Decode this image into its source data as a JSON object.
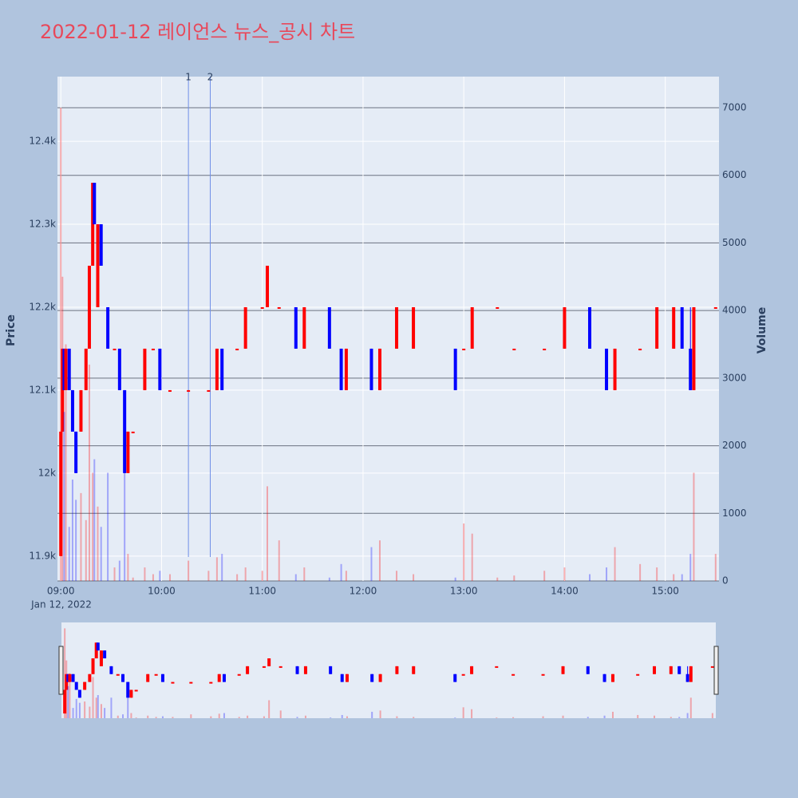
{
  "chart_data": {
    "type": "candlestick",
    "title": "2022-01-12 레이언스 뉴스_공시 차트",
    "y_label": "Price",
    "y2_label": "Volume",
    "x_date_label": "Jan 12, 2022",
    "up_color": "#ff0000",
    "down_color": "#0000ff",
    "xlim": [
      "08:58",
      "15:32"
    ],
    "xticks": [
      "09:00",
      "10:00",
      "11:00",
      "12:00",
      "13:00",
      "14:00",
      "15:00"
    ],
    "ylim": [
      11870,
      12478
    ],
    "yticks": [
      {
        "value": 11900,
        "label": "11.9k"
      },
      {
        "value": 12000,
        "label": "12k"
      },
      {
        "value": 12100,
        "label": "12.1k"
      },
      {
        "value": 12200,
        "label": "12.2k"
      },
      {
        "value": 12300,
        "label": "12.3k"
      },
      {
        "value": 12400,
        "label": "12.4k"
      }
    ],
    "y2lim": [
      0,
      7460
    ],
    "y2ticks": [
      0,
      1000,
      2000,
      3000,
      4000,
      5000,
      6000,
      7000
    ],
    "annotations": [
      {
        "label": "1",
        "x": "10:16"
      },
      {
        "label": "2",
        "x": "10:29"
      }
    ],
    "x": [
      "09:00",
      "09:01",
      "09:02",
      "09:03",
      "09:05",
      "09:07",
      "09:09",
      "09:12",
      "09:15",
      "09:17",
      "09:19",
      "09:20",
      "09:22",
      "09:24",
      "09:28",
      "09:32",
      "09:35",
      "09:38",
      "09:40",
      "09:43",
      "09:50",
      "09:55",
      "09:59",
      "10:05",
      "10:16",
      "10:28",
      "10:33",
      "10:36",
      "10:45",
      "10:50",
      "11:00",
      "11:03",
      "11:10",
      "11:20",
      "11:25",
      "11:40",
      "11:47",
      "11:50",
      "12:05",
      "12:10",
      "12:20",
      "12:30",
      "12:55",
      "13:00",
      "13:05",
      "13:20",
      "13:30",
      "13:48",
      "14:00",
      "14:15",
      "14:25",
      "14:30",
      "14:45",
      "14:55",
      "15:05",
      "15:10",
      "15:15",
      "15:17",
      "15:30"
    ],
    "open": [
      11900,
      12050,
      12150,
      12100,
      12150,
      12100,
      12050,
      12050,
      12100,
      12150,
      12250,
      12350,
      12200,
      12300,
      12200,
      12150,
      12150,
      12100,
      12000,
      12050,
      12100,
      12150,
      12150,
      12100,
      12100,
      12100,
      12100,
      12150,
      12150,
      12150,
      12200,
      12200,
      12200,
      12200,
      12150,
      12200,
      12150,
      12100,
      12150,
      12100,
      12150,
      12150,
      12150,
      12150,
      12150,
      12200,
      12150,
      12150,
      12150,
      12200,
      12150,
      12100,
      12150,
      12150,
      12150,
      12200,
      12150,
      12100,
      12200
    ],
    "high": [
      12050,
      12150,
      12150,
      12150,
      12150,
      12100,
      12050,
      12100,
      12150,
      12250,
      12350,
      12350,
      12300,
      12300,
      12200,
      12150,
      12150,
      12100,
      12050,
      12050,
      12150,
      12150,
      12150,
      12100,
      12100,
      12100,
      12150,
      12150,
      12150,
      12200,
      12200,
      12250,
      12200,
      12200,
      12200,
      12200,
      12150,
      12150,
      12150,
      12150,
      12200,
      12200,
      12150,
      12150,
      12200,
      12200,
      12150,
      12150,
      12200,
      12200,
      12150,
      12150,
      12150,
      12200,
      12200,
      12200,
      12200,
      12200,
      12200
    ],
    "low": [
      11900,
      12050,
      12100,
      12100,
      12100,
      12050,
      12000,
      12050,
      12100,
      12150,
      12250,
      12300,
      12200,
      12250,
      12150,
      12150,
      12100,
      12000,
      12000,
      12050,
      12100,
      12150,
      12100,
      12100,
      12100,
      12100,
      12100,
      12100,
      12150,
      12150,
      12200,
      12200,
      12200,
      12150,
      12150,
      12150,
      12100,
      12100,
      12100,
      12100,
      12150,
      12150,
      12100,
      12150,
      12150,
      12200,
      12150,
      12150,
      12150,
      12150,
      12100,
      12100,
      12150,
      12150,
      12150,
      12150,
      12100,
      12100,
      12200
    ],
    "close": [
      12050,
      12150,
      12100,
      12150,
      12100,
      12050,
      12000,
      12100,
      12150,
      12250,
      12350,
      12300,
      12300,
      12250,
      12150,
      12150,
      12100,
      12000,
      12050,
      12050,
      12150,
      12150,
      12100,
      12100,
      12100,
      12100,
      12150,
      12100,
      12150,
      12200,
      12200,
      12250,
      12200,
      12150,
      12200,
      12150,
      12100,
      12150,
      12100,
      12150,
      12200,
      12200,
      12100,
      12150,
      12200,
      12200,
      12150,
      12150,
      12200,
      12150,
      12100,
      12150,
      12150,
      12200,
      12200,
      12150,
      12100,
      12200,
      12200
    ],
    "volume": [
      7000,
      4500,
      2500,
      3500,
      800,
      1500,
      1200,
      1300,
      900,
      3200,
      1600,
      1800,
      1100,
      800,
      1600,
      200,
      300,
      1600,
      400,
      50,
      200,
      100,
      150,
      100,
      300,
      150,
      350,
      400,
      100,
      200,
      150,
      1400,
      600,
      100,
      200,
      50,
      250,
      150,
      500,
      600,
      150,
      100,
      50,
      850,
      700,
      50,
      80,
      150,
      200,
      100,
      200,
      500,
      250,
      200,
      100,
      100,
      400,
      1600,
      400
    ]
  }
}
